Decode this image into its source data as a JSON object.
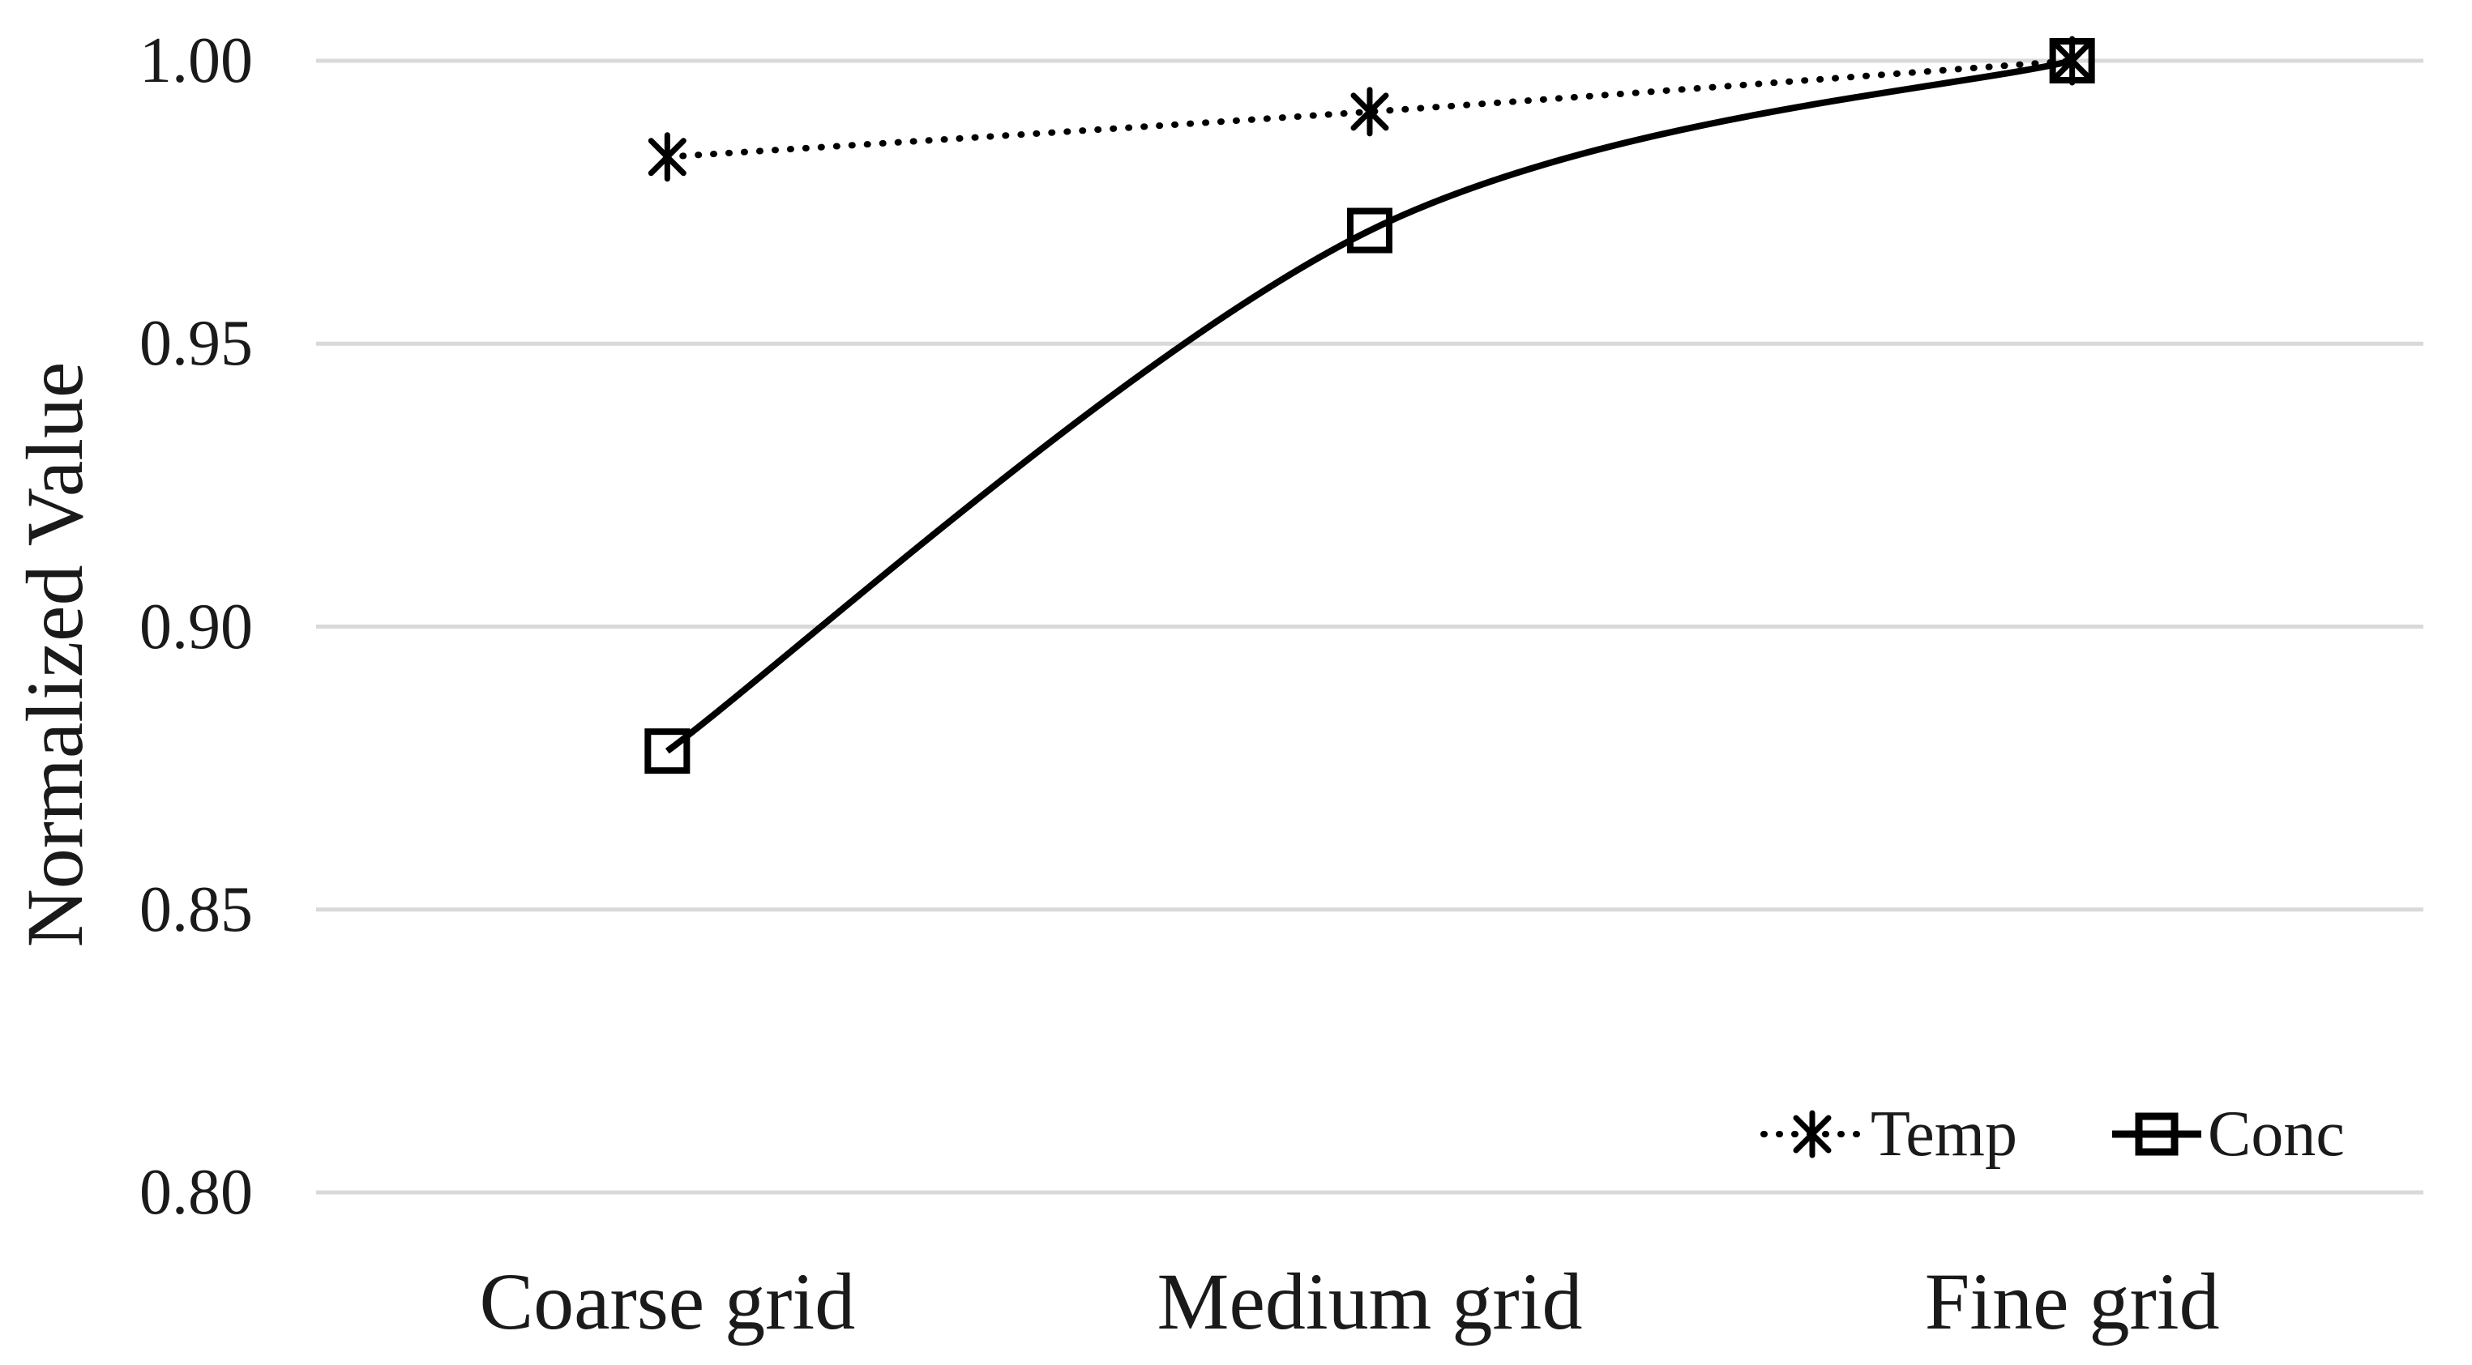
{
  "chart_data": {
    "type": "line",
    "title": "",
    "xlabel": "",
    "ylabel": "Normalized Value",
    "categories": [
      "Coarse grid",
      "Medium grid",
      "Fine grid"
    ],
    "series": [
      {
        "name": "Temp",
        "values": [
          0.983,
          0.991,
          1.0
        ],
        "line_style": "dotted",
        "marker": "asterisk",
        "color": "#000000"
      },
      {
        "name": "Conc",
        "values": [
          0.878,
          0.97,
          1.0
        ],
        "line_style": "solid",
        "marker": "square-open",
        "color": "#000000"
      }
    ],
    "ylim": [
      0.8,
      1.0
    ],
    "yticks": [
      {
        "label": "1.00",
        "value": 1.0
      },
      {
        "label": "0.95",
        "value": 0.95
      },
      {
        "label": "0.90",
        "value": 0.9
      },
      {
        "label": "0.85",
        "value": 0.85
      },
      {
        "label": "0.80",
        "value": 0.8
      }
    ],
    "grid": "horizontal",
    "gridline_color": "#d9d9d9",
    "background_color": "#ffffff",
    "legend_position": "inside-bottom-right",
    "smoothed_lines": true
  }
}
